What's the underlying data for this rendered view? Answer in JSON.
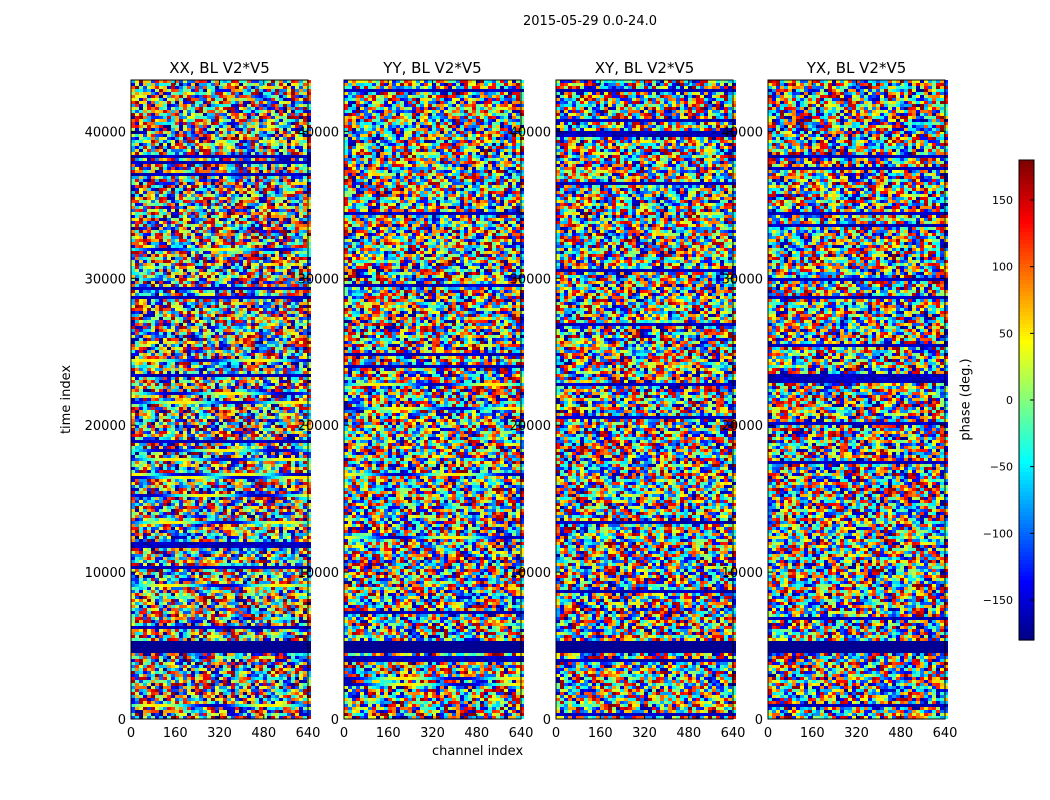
{
  "suptitle": "2015-05-29 0.0-24.0",
  "colorbar": {
    "label": "phase (deg.)",
    "ticks": [
      150,
      100,
      50,
      0,
      -50,
      -100,
      -150
    ],
    "tick_labels": [
      "150",
      "100",
      "50",
      "0",
      "−50",
      "−100",
      "−150"
    ],
    "range": [
      -180,
      180
    ],
    "colormap": "jet"
  },
  "chart_data": [
    {
      "type": "heatmap",
      "title": "XX, BL V2*V5",
      "xlabel": "",
      "ylabel": "time index",
      "xlim": [
        0,
        640
      ],
      "ylim": [
        0,
        43500
      ],
      "xticks": [
        0,
        160,
        320,
        480,
        640
      ],
      "yticks": [
        0,
        10000,
        20000,
        30000,
        40000
      ],
      "value": "phase (deg.)",
      "vrange": [
        -180,
        180
      ]
    },
    {
      "type": "heatmap",
      "title": "YY, BL V2*V5",
      "xlabel": "channel index",
      "ylabel": "",
      "xlim": [
        0,
        640
      ],
      "ylim": [
        0,
        43500
      ],
      "xticks": [
        0,
        160,
        320,
        480,
        640
      ],
      "yticks": [
        0,
        10000,
        20000,
        30000,
        40000
      ],
      "value": "phase (deg.)",
      "vrange": [
        -180,
        180
      ]
    },
    {
      "type": "heatmap",
      "title": "XY, BL V2*V5",
      "xlabel": "",
      "ylabel": "",
      "xlim": [
        0,
        640
      ],
      "ylim": [
        0,
        43500
      ],
      "xticks": [
        0,
        160,
        320,
        480,
        640
      ],
      "yticks": [
        0,
        10000,
        20000,
        30000,
        40000
      ],
      "value": "phase (deg.)",
      "vrange": [
        -180,
        180
      ]
    },
    {
      "type": "heatmap",
      "title": "YX, BL V2*V5",
      "xlabel": "",
      "ylabel": "",
      "xlim": [
        0,
        640
      ],
      "ylim": [
        0,
        43500
      ],
      "xticks": [
        0,
        160,
        320,
        480,
        640
      ],
      "yticks": [
        0,
        10000,
        20000,
        30000,
        40000
      ],
      "value": "phase (deg.)",
      "vrange": [
        -180,
        180
      ]
    }
  ]
}
